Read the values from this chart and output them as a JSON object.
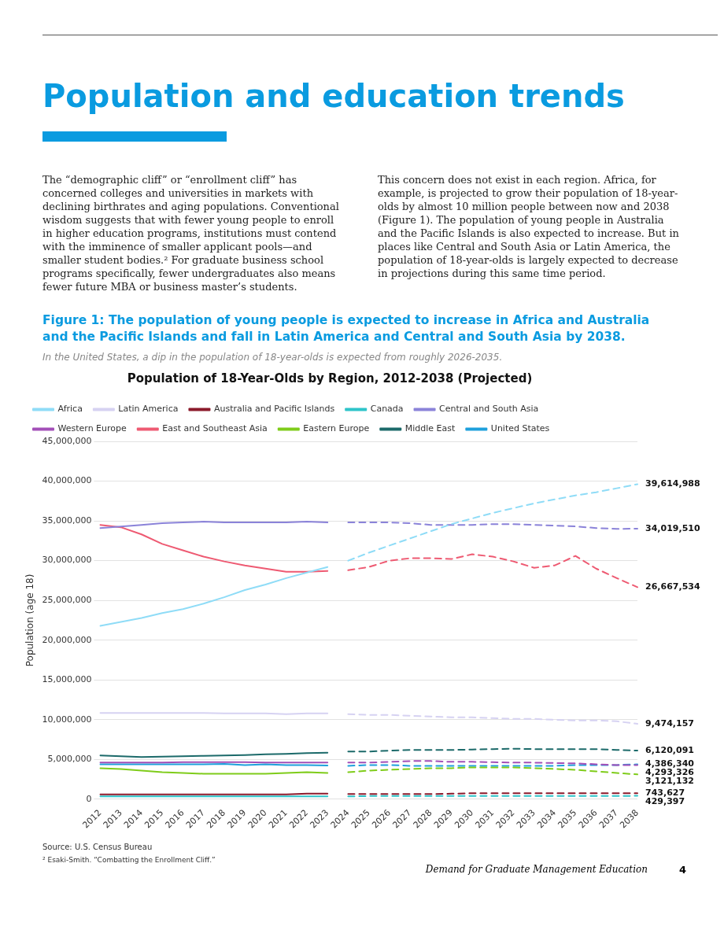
{
  "chart_data": {
    "type": "line",
    "title": "Population of 18-Year-Olds by Region, 2012-2038 (Projected)",
    "ylabel": "Population (age 18)",
    "annotations": [
      "Population and education trends",
      "The “demographic cliff” or “enrollment cliff” has concerned colleges and universities in markets with declining birthrates and aging populations. Conventional wisdom suggests that with fewer young people to enroll in higher education programs, institutions must contend with the imminence of smaller applicant pools—and smaller student bodies.² For graduate business school programs specifically, fewer undergraduates also means fewer future MBA or business master’s students.",
      "This concern does not exist in each region. Africa, for example, is projected to grow their population of 18-year-olds by almost 10 million people between now and 2038 (Figure 1). The population of young people in Australia and the Pacific Islands is also expected to increase. But in places like Central and South Asia or Latin America, the population of 18-year-olds is largely expected to decrease in projections during this same time period.",
      "Figure 1: The population of young people is expected to increase in Africa and Australia and the Pacific Islands and fall in Latin America and Central and South Asia by 2038.",
      "In the United States, a dip in the population of 18-year-olds is expected from roughly 2026-2035.",
      "Source: U.S. Census Bureau",
      "² Esaki-Smith. “Combatting the Enrollment Cliff.”",
      "Demand for Graduate Management Education",
      "4"
    ],
    "categories": [
      "2012",
      "2013",
      "2014",
      "2015",
      "2016",
      "2017",
      "2018",
      "2019",
      "2020",
      "2021",
      "2022",
      "2023",
      "2024",
      "2025",
      "2026",
      "2027",
      "2028",
      "2029",
      "2030",
      "2031",
      "2032",
      "2033",
      "2034",
      "2035",
      "2036",
      "2037",
      "2038"
    ],
    "ylim": [
      0,
      45000000
    ],
    "yticks": [
      {
        "value": 0,
        "label": "0"
      },
      {
        "value": 5000000,
        "label": "5,000,000"
      },
      {
        "value": 10000000,
        "label": "10,000,000"
      },
      {
        "value": 15000000,
        "label": "15,000,000"
      },
      {
        "value": 20000000,
        "label": "20,000,000"
      },
      {
        "value": 25000000,
        "label": "25,000,000"
      },
      {
        "value": 30000000,
        "label": "30,000,000"
      },
      {
        "value": 35000000,
        "label": "35,000,000"
      },
      {
        "value": 40000000,
        "label": "40,000,000"
      },
      {
        "value": 45000000,
        "label": "45,000,000"
      }
    ],
    "grid": "y",
    "legend": "top",
    "marker": "none",
    "series": [
      {
        "name": "Africa",
        "color": "#8fdcf7",
        "line_style": "solid",
        "values": [
          21800000,
          22300000,
          22800000,
          23400000,
          23900000,
          24600000,
          25400000,
          26300000,
          27000000,
          27800000,
          28500000,
          29200000,
          null,
          null,
          null,
          null,
          null,
          null,
          null,
          null,
          null,
          null,
          null,
          null,
          null,
          null,
          null
        ]
      },
      {
        "name": "Latin America",
        "color": "#d6d2f2",
        "line_style": "solid",
        "values": [
          10850000,
          10850000,
          10850000,
          10850000,
          10850000,
          10850000,
          10800000,
          10800000,
          10800000,
          10700000,
          10800000,
          10800000,
          null,
          null,
          null,
          null,
          null,
          null,
          null,
          null,
          null,
          null,
          null,
          null,
          null,
          null,
          null
        ]
      },
      {
        "name": "Australia and Pacific Islands",
        "color": "#8b1a2b",
        "line_style": "solid",
        "values": [
          600000,
          600000,
          600000,
          600000,
          600000,
          600000,
          600000,
          600000,
          600000,
          600000,
          700000,
          700000,
          null,
          null,
          null,
          null,
          null,
          null,
          null,
          null,
          null,
          null,
          null,
          null,
          null,
          null,
          null
        ]
      },
      {
        "name": "Canada",
        "color": "#2ec4c9",
        "line_style": "solid",
        "values": [
          350000,
          350000,
          350000,
          350000,
          350000,
          350000,
          350000,
          350000,
          350000,
          350000,
          350000,
          350000,
          null,
          null,
          null,
          null,
          null,
          null,
          null,
          null,
          null,
          null,
          null,
          null,
          null,
          null,
          null
        ]
      },
      {
        "name": "Central and South Asia",
        "color": "#8b83d9",
        "line_style": "solid",
        "values": [
          34100000,
          34300000,
          34500000,
          34700000,
          34800000,
          34900000,
          34800000,
          34800000,
          34800000,
          34800000,
          34900000,
          34800000,
          null,
          null,
          null,
          null,
          null,
          null,
          null,
          null,
          null,
          null,
          null,
          null,
          null,
          null,
          null
        ]
      },
      {
        "name": "Western Europe",
        "color": "#a34fb8",
        "line_style": "solid",
        "values": [
          4600000,
          4600000,
          4600000,
          4600000,
          4650000,
          4650000,
          4650000,
          4650000,
          4600000,
          4600000,
          4600000,
          4600000,
          null,
          null,
          null,
          null,
          null,
          null,
          null,
          null,
          null,
          null,
          null,
          null,
          null,
          null,
          null
        ]
      },
      {
        "name": "East and Southeast Asia",
        "color": "#ee5a72",
        "line_style": "solid",
        "values": [
          34500000,
          34200000,
          33300000,
          32100000,
          31300000,
          30500000,
          29900000,
          29400000,
          29000000,
          28600000,
          28600000,
          28700000,
          null,
          null,
          null,
          null,
          null,
          null,
          null,
          null,
          null,
          null,
          null,
          null,
          null,
          null,
          null
        ]
      },
      {
        "name": "Eastern Europe",
        "color": "#7fcc1a",
        "line_style": "solid",
        "values": [
          3900000,
          3800000,
          3600000,
          3400000,
          3300000,
          3200000,
          3200000,
          3200000,
          3200000,
          3300000,
          3400000,
          3300000,
          null,
          null,
          null,
          null,
          null,
          null,
          null,
          null,
          null,
          null,
          null,
          null,
          null,
          null,
          null
        ]
      },
      {
        "name": "Middle East",
        "color": "#1c6a6a",
        "line_style": "solid",
        "values": [
          5500000,
          5400000,
          5300000,
          5350000,
          5400000,
          5450000,
          5500000,
          5550000,
          5650000,
          5700000,
          5800000,
          5850000,
          null,
          null,
          null,
          null,
          null,
          null,
          null,
          null,
          null,
          null,
          null,
          null,
          null,
          null,
          null
        ]
      },
      {
        "name": "United States",
        "color": "#1ea0dc",
        "line_style": "solid",
        "values": [
          4400000,
          4400000,
          4400000,
          4400000,
          4400000,
          4400000,
          4450000,
          4300000,
          4400000,
          4300000,
          4300000,
          4250000,
          null,
          null,
          null,
          null,
          null,
          null,
          null,
          null,
          null,
          null,
          null,
          null,
          null,
          null,
          null
        ]
      },
      {
        "color": "#8fdcf7",
        "line_style": "dashed",
        "values": [
          null,
          null,
          null,
          null,
          null,
          null,
          null,
          null,
          null,
          null,
          null,
          null,
          30000000,
          31000000,
          31900000,
          32800000,
          33700000,
          34600000,
          35300000,
          36000000,
          36600000,
          37200000,
          37700000,
          38200000,
          38600000,
          39100000,
          39614988
        ],
        "value_labels": [
          null,
          null,
          null,
          null,
          null,
          null,
          null,
          null,
          null,
          null,
          null,
          null,
          null,
          null,
          null,
          null,
          null,
          null,
          null,
          null,
          null,
          null,
          null,
          null,
          null,
          null,
          "39,614,988"
        ]
      },
      {
        "color": "#d6d2f2",
        "line_style": "dashed",
        "values": [
          null,
          null,
          null,
          null,
          null,
          null,
          null,
          null,
          null,
          null,
          null,
          null,
          10700000,
          10600000,
          10600000,
          10500000,
          10400000,
          10300000,
          10300000,
          10200000,
          10100000,
          10100000,
          10000000,
          9900000,
          9900000,
          9800000,
          9474157
        ],
        "value_labels": [
          null,
          null,
          null,
          null,
          null,
          null,
          null,
          null,
          null,
          null,
          null,
          null,
          null,
          null,
          null,
          null,
          null,
          null,
          null,
          null,
          null,
          null,
          null,
          null,
          null,
          null,
          "9,474,157"
        ]
      },
      {
        "color": "#8b1a2b",
        "line_style": "dashed",
        "values": [
          null,
          null,
          null,
          null,
          null,
          null,
          null,
          null,
          null,
          null,
          null,
          null,
          650000,
          650000,
          650000,
          650000,
          650000,
          700000,
          750000,
          750000,
          750000,
          750000,
          750000,
          750000,
          750000,
          750000,
          743627
        ],
        "value_labels": [
          null,
          null,
          null,
          null,
          null,
          null,
          null,
          null,
          null,
          null,
          null,
          null,
          null,
          null,
          null,
          null,
          null,
          null,
          null,
          null,
          null,
          null,
          null,
          null,
          null,
          null,
          "743,627"
        ]
      },
      {
        "color": "#2ec4c9",
        "line_style": "dashed",
        "values": [
          null,
          null,
          null,
          null,
          null,
          null,
          null,
          null,
          null,
          null,
          null,
          null,
          350000,
          400000,
          400000,
          400000,
          400000,
          400000,
          400000,
          400000,
          400000,
          400000,
          400000,
          400000,
          400000,
          400000,
          429397
        ],
        "value_labels": [
          null,
          null,
          null,
          null,
          null,
          null,
          null,
          null,
          null,
          null,
          null,
          null,
          null,
          null,
          null,
          null,
          null,
          null,
          null,
          null,
          null,
          null,
          null,
          null,
          null,
          null,
          "429,397"
        ]
      },
      {
        "color": "#8b83d9",
        "line_style": "dashed",
        "values": [
          null,
          null,
          null,
          null,
          null,
          null,
          null,
          null,
          null,
          null,
          null,
          null,
          34800000,
          34800000,
          34800000,
          34700000,
          34500000,
          34500000,
          34500000,
          34600000,
          34600000,
          34500000,
          34400000,
          34300000,
          34100000,
          34000000,
          34019510
        ],
        "value_labels": [
          null,
          null,
          null,
          null,
          null,
          null,
          null,
          null,
          null,
          null,
          null,
          null,
          null,
          null,
          null,
          null,
          null,
          null,
          null,
          null,
          null,
          null,
          null,
          null,
          null,
          null,
          "34,019,510"
        ]
      },
      {
        "color": "#a34fb8",
        "line_style": "dashed",
        "values": [
          null,
          null,
          null,
          null,
          null,
          null,
          null,
          null,
          null,
          null,
          null,
          null,
          4600000,
          4600000,
          4700000,
          4800000,
          4800000,
          4700000,
          4700000,
          4650000,
          4600000,
          4600000,
          4550000,
          4500000,
          4400000,
          4300000,
          4293326
        ],
        "value_labels": [
          null,
          null,
          null,
          null,
          null,
          null,
          null,
          null,
          null,
          null,
          null,
          null,
          null,
          null,
          null,
          null,
          null,
          null,
          null,
          null,
          null,
          null,
          null,
          null,
          null,
          null,
          "4,293,326"
        ]
      },
      {
        "color": "#ee5a72",
        "line_style": "dashed",
        "values": [
          null,
          null,
          null,
          null,
          null,
          null,
          null,
          null,
          null,
          null,
          null,
          null,
          28800000,
          29200000,
          30000000,
          30300000,
          30300000,
          30200000,
          30800000,
          30500000,
          29900000,
          29100000,
          29400000,
          30600000,
          29000000,
          27800000,
          26667534
        ],
        "value_labels": [
          null,
          null,
          null,
          null,
          null,
          null,
          null,
          null,
          null,
          null,
          null,
          null,
          null,
          null,
          null,
          null,
          null,
          null,
          null,
          null,
          null,
          null,
          null,
          null,
          null,
          null,
          "26,667,534"
        ]
      },
      {
        "color": "#7fcc1a",
        "line_style": "dashed",
        "values": [
          null,
          null,
          null,
          null,
          null,
          null,
          null,
          null,
          null,
          null,
          null,
          null,
          3400000,
          3600000,
          3700000,
          3800000,
          3900000,
          3900000,
          4000000,
          4000000,
          4000000,
          3900000,
          3800000,
          3700000,
          3500000,
          3300000,
          3121132
        ],
        "value_labels": [
          null,
          null,
          null,
          null,
          null,
          null,
          null,
          null,
          null,
          null,
          null,
          null,
          null,
          null,
          null,
          null,
          null,
          null,
          null,
          null,
          null,
          null,
          null,
          null,
          null,
          null,
          "3,121,132"
        ]
      },
      {
        "color": "#1c6a6a",
        "line_style": "dashed",
        "values": [
          null,
          null,
          null,
          null,
          null,
          null,
          null,
          null,
          null,
          null,
          null,
          null,
          6000000,
          6000000,
          6100000,
          6200000,
          6200000,
          6200000,
          6250000,
          6300000,
          6350000,
          6300000,
          6300000,
          6300000,
          6300000,
          6200000,
          6120091
        ],
        "value_labels": [
          null,
          null,
          null,
          null,
          null,
          null,
          null,
          null,
          null,
          null,
          null,
          null,
          null,
          null,
          null,
          null,
          null,
          null,
          null,
          null,
          null,
          null,
          null,
          null,
          null,
          null,
          "6,120,091"
        ]
      },
      {
        "color": "#1ea0dc",
        "line_style": "dashed",
        "values": [
          null,
          null,
          null,
          null,
          null,
          null,
          null,
          null,
          null,
          null,
          null,
          null,
          4200000,
          4300000,
          4300000,
          4200000,
          4200000,
          4200000,
          4200000,
          4200000,
          4200000,
          4200000,
          4200000,
          4300000,
          4300000,
          4300000,
          4386340
        ],
        "value_labels": [
          null,
          null,
          null,
          null,
          null,
          null,
          null,
          null,
          null,
          null,
          null,
          null,
          null,
          null,
          null,
          null,
          null,
          null,
          null,
          null,
          null,
          null,
          null,
          null,
          null,
          null,
          "4,386,340"
        ]
      }
    ]
  }
}
